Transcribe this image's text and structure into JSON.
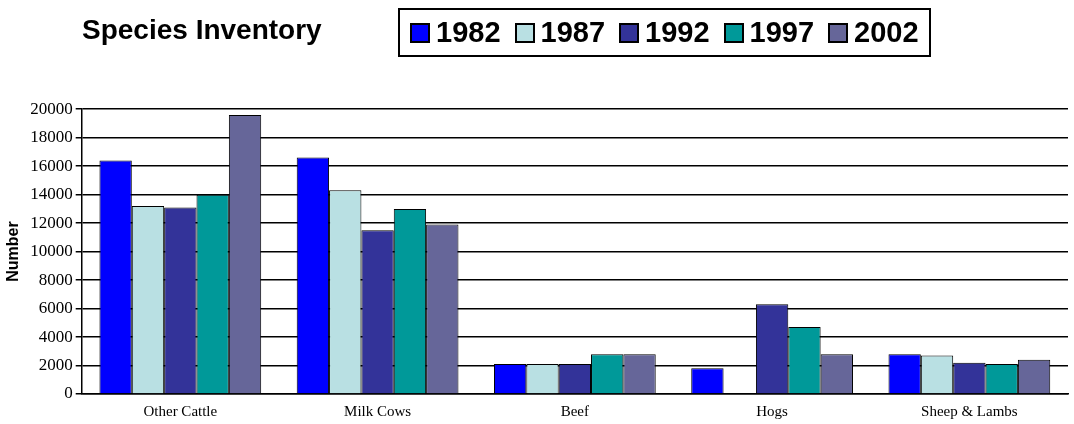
{
  "chart_data": {
    "type": "bar",
    "title": "Species Inventory",
    "ylabel": "Number",
    "categories": [
      "Other Cattle",
      "Milk Cows",
      "Beef",
      "Hogs",
      "Sheep & Lambs"
    ],
    "series": [
      {
        "name": "1982",
        "color": "#0000ff",
        "values": [
          16400,
          16600,
          2100,
          1800,
          2800
        ]
      },
      {
        "name": "1987",
        "color": "#b9e0e3",
        "values": [
          13200,
          14300,
          2100,
          null,
          2700
        ]
      },
      {
        "name": "1992",
        "color": "#333399",
        "values": [
          13100,
          11500,
          2100,
          6300,
          2200
        ]
      },
      {
        "name": "1997",
        "color": "#009999",
        "values": [
          14000,
          13000,
          2800,
          4700,
          2100
        ]
      },
      {
        "name": "2002",
        "color": "#666699",
        "values": [
          19600,
          11900,
          2800,
          2800,
          2400
        ]
      }
    ],
    "ylim": [
      0,
      20000
    ],
    "yticks": [
      0,
      2000,
      4000,
      6000,
      8000,
      10000,
      12000,
      14000,
      16000,
      18000,
      20000
    ],
    "grid": "y",
    "legend": "top"
  }
}
